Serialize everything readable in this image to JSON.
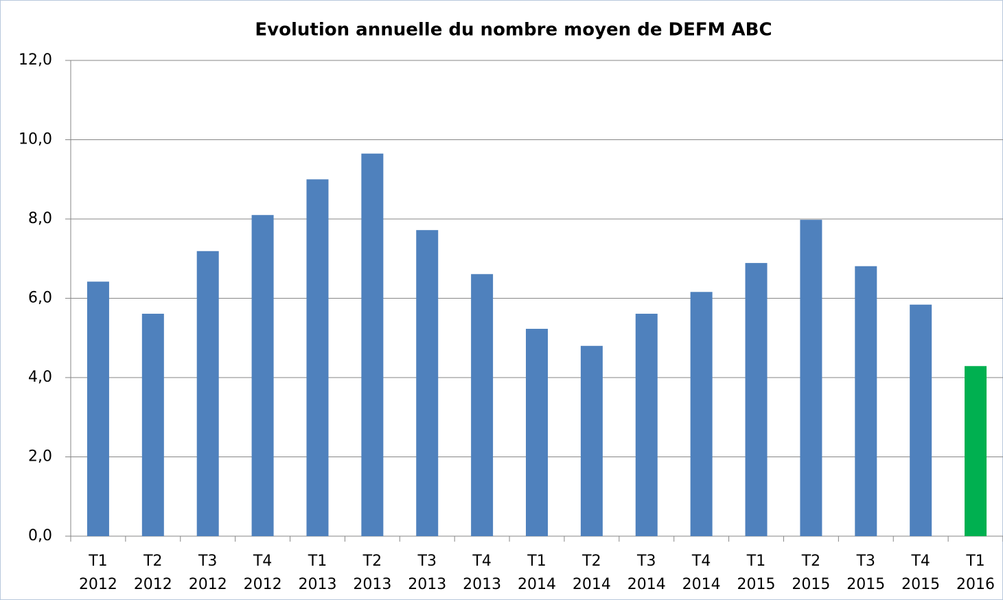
{
  "chart_data": {
    "type": "bar",
    "title": "Evolution annuelle du nombre moyen de DEFM ABC",
    "categories": [
      [
        "T1",
        "2012"
      ],
      [
        "T2",
        "2012"
      ],
      [
        "T3",
        "2012"
      ],
      [
        "T4",
        "2012"
      ],
      [
        "T1",
        "2013"
      ],
      [
        "T2",
        "2013"
      ],
      [
        "T3",
        "2013"
      ],
      [
        "T4",
        "2013"
      ],
      [
        "T1",
        "2014"
      ],
      [
        "T2",
        "2014"
      ],
      [
        "T3",
        "2014"
      ],
      [
        "T4",
        "2014"
      ],
      [
        "T1",
        "2015"
      ],
      [
        "T2",
        "2015"
      ],
      [
        "T3",
        "2015"
      ],
      [
        "T4",
        "2015"
      ],
      [
        "T1",
        "2016"
      ]
    ],
    "values": [
      6.42,
      5.61,
      7.19,
      8.1,
      9.0,
      9.65,
      7.72,
      6.61,
      5.23,
      4.8,
      5.61,
      6.16,
      6.89,
      7.98,
      6.81,
      5.84,
      4.29
    ],
    "colors": [
      "#4f81bd",
      "#4f81bd",
      "#4f81bd",
      "#4f81bd",
      "#4f81bd",
      "#4f81bd",
      "#4f81bd",
      "#4f81bd",
      "#4f81bd",
      "#4f81bd",
      "#4f81bd",
      "#4f81bd",
      "#4f81bd",
      "#4f81bd",
      "#4f81bd",
      "#4f81bd",
      "#00b050"
    ],
    "ylim": [
      0,
      12
    ],
    "yticks": [
      {
        "value": 0,
        "label": "0,0"
      },
      {
        "value": 2,
        "label": "2,0"
      },
      {
        "value": 4,
        "label": "4,0"
      },
      {
        "value": 6,
        "label": "6,0"
      },
      {
        "value": 8,
        "label": "8,0"
      },
      {
        "value": 10,
        "label": "10,0"
      },
      {
        "value": 12,
        "label": "12,0"
      }
    ],
    "grid": true
  }
}
